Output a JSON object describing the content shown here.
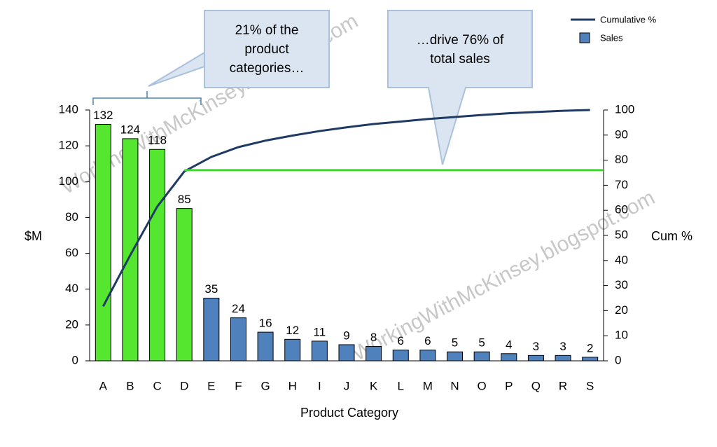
{
  "chart_data": {
    "type": "bar",
    "categories": [
      "A",
      "B",
      "C",
      "D",
      "E",
      "F",
      "G",
      "H",
      "I",
      "J",
      "K",
      "L",
      "M",
      "N",
      "O",
      "P",
      "Q",
      "R",
      "S"
    ],
    "series": [
      {
        "name": "Sales",
        "type": "bar",
        "color": "#4f81bd",
        "colors": [
          "#55e630",
          "#55e630",
          "#55e630",
          "#55e630",
          "#4f81bd",
          "#4f81bd",
          "#4f81bd",
          "#4f81bd",
          "#4f81bd",
          "#4f81bd",
          "#4f81bd",
          "#4f81bd",
          "#4f81bd",
          "#4f81bd",
          "#4f81bd",
          "#4f81bd",
          "#4f81bd",
          "#4f81bd",
          "#4f81bd"
        ],
        "values": [
          132,
          124,
          118,
          85,
          35,
          24,
          16,
          12,
          11,
          9,
          8,
          6,
          6,
          5,
          5,
          4,
          3,
          3,
          2
        ]
      },
      {
        "name": "Cumulative %",
        "type": "line",
        "axis": "y2",
        "color": "#1f3b64",
        "values": [
          21.7,
          42.1,
          61.5,
          75.5,
          81.3,
          85.2,
          87.8,
          89.8,
          91.6,
          93.1,
          94.4,
          95.4,
          96.4,
          97.2,
          98.0,
          98.7,
          99.2,
          99.7,
          100
        ]
      }
    ],
    "reference_line": {
      "value": 76,
      "axis": "y2",
      "color": "#33dd22",
      "from_category": 3
    },
    "ylim": [
      0,
      140
    ],
    "yticks": [
      0,
      20,
      40,
      60,
      80,
      100,
      120,
      140
    ],
    "y2lim": [
      0,
      100
    ],
    "y2ticks": [
      0,
      10,
      20,
      30,
      40,
      50,
      60,
      70,
      80,
      90,
      100
    ],
    "y_label": "$M",
    "y2_label": "Cum %",
    "x_label": "Product Category",
    "legend": "top-right",
    "annotations": [
      {
        "lines": [
          "21% of the",
          "product",
          "categories…"
        ]
      },
      {
        "lines": [
          "…drive 76% of",
          "total sales"
        ]
      }
    ],
    "watermark": "WorkingWithMcKinsey.blogspot.com"
  }
}
